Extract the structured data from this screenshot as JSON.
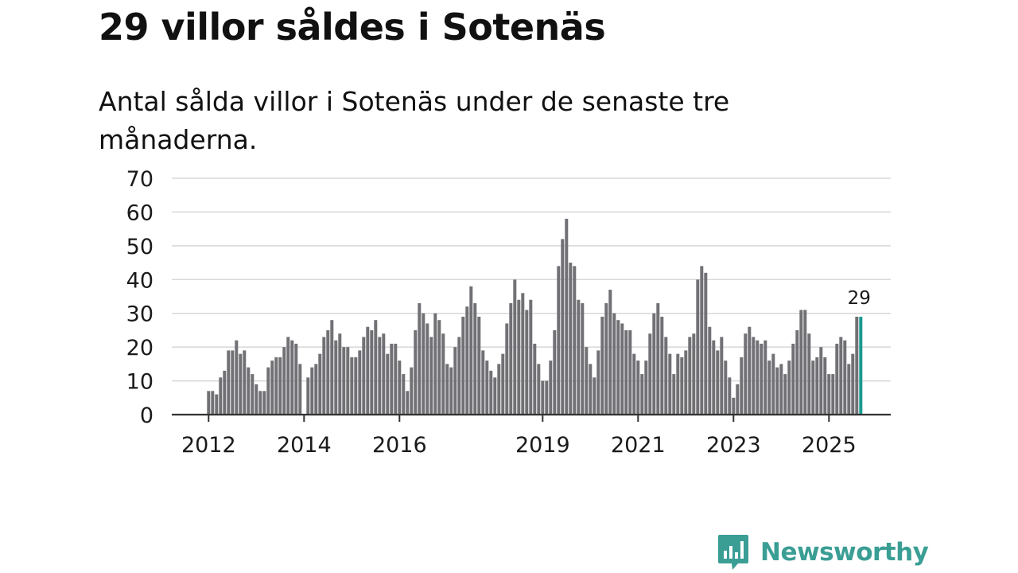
{
  "title": "29 villor såldes i Sotenäs",
  "subtitle": "Antal sålda villor i Sotenäs under de senaste tre månaderna.",
  "colors": {
    "bar": "#717075",
    "highlight": "#1a9a90",
    "grid": "#d8d8d8",
    "axis": "#333333",
    "brand": "#3a9e95"
  },
  "brand": {
    "name": "Newsworthy",
    "icon": "bar-chart-speech-bubble-icon"
  },
  "chart_data": {
    "type": "bar",
    "title": "29 villor såldes i Sotenäs",
    "subtitle": "Antal sålda villor i Sotenäs under de senaste tre månaderna.",
    "xlabel": "",
    "ylabel": "",
    "ylim": [
      0,
      70
    ],
    "yticks": [
      0,
      10,
      20,
      30,
      40,
      50,
      60,
      70
    ],
    "grid": true,
    "start": "2012-01",
    "frequency": "monthly",
    "xticks": [
      {
        "label": "2012",
        "index": 0
      },
      {
        "label": "2014",
        "index": 24
      },
      {
        "label": "2016",
        "index": 48
      },
      {
        "label": "2019",
        "index": 84
      },
      {
        "label": "2021",
        "index": 108
      },
      {
        "label": "2023",
        "index": 132
      },
      {
        "label": "2025",
        "index": 156
      }
    ],
    "values": [
      7,
      7,
      6,
      11,
      13,
      19,
      19,
      22,
      18,
      19,
      14,
      12,
      9,
      7,
      7,
      14,
      16,
      17,
      17,
      20,
      23,
      22,
      21,
      15,
      0,
      11,
      14,
      15,
      18,
      23,
      25,
      28,
      22,
      24,
      20,
      20,
      17,
      17,
      19,
      23,
      26,
      25,
      28,
      23,
      24,
      18,
      21,
      21,
      16,
      12,
      7,
      14,
      25,
      33,
      30,
      27,
      23,
      30,
      28,
      24,
      15,
      14,
      20,
      23,
      29,
      32,
      38,
      33,
      29,
      19,
      16,
      13,
      11,
      15,
      18,
      27,
      33,
      40,
      34,
      36,
      31,
      34,
      21,
      15,
      10,
      10,
      16,
      25,
      44,
      52,
      58,
      45,
      44,
      34,
      33,
      20,
      15,
      11,
      19,
      29,
      33,
      37,
      30,
      28,
      27,
      25,
      25,
      18,
      16,
      12,
      16,
      24,
      30,
      33,
      29,
      23,
      18,
      12,
      18,
      17,
      19,
      23,
      24,
      40,
      44,
      42,
      26,
      22,
      19,
      23,
      16,
      11,
      5,
      9,
      17,
      24,
      26,
      23,
      22,
      21,
      22,
      16,
      18,
      14,
      15,
      12,
      16,
      21,
      25,
      31,
      31,
      24,
      16,
      17,
      20,
      17,
      12,
      12,
      21,
      23,
      22,
      15,
      18,
      29,
      29
    ],
    "highlight": {
      "index": 164,
      "value": 29,
      "label": "29"
    }
  }
}
